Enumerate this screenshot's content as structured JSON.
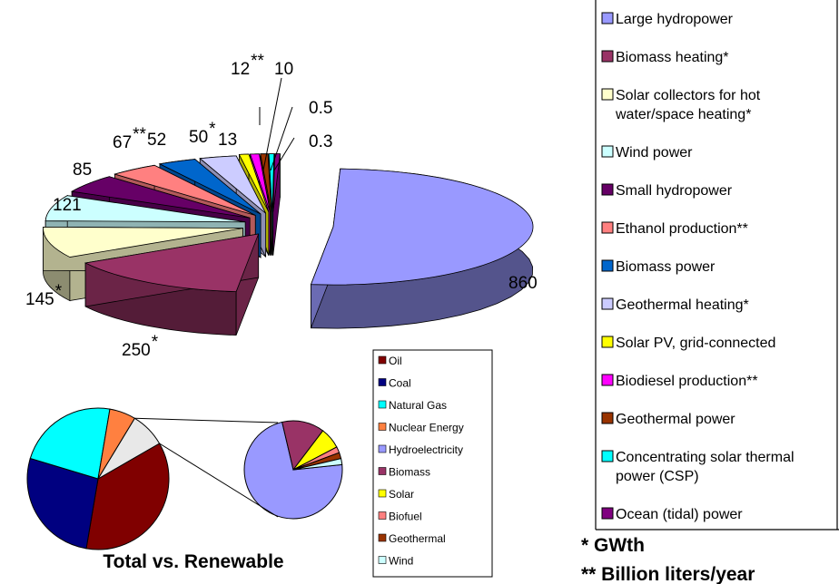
{
  "chart_data": [
    {
      "type": "pie",
      "style": "3d-exploded",
      "values": [
        860,
        250,
        145,
        121,
        85,
        67,
        52,
        50,
        13,
        12,
        10,
        0.5,
        0.3
      ],
      "value_labels": [
        "860",
        "250",
        "145",
        "121",
        "85",
        "67",
        "52",
        "50",
        "13",
        "12",
        "10",
        "0.5",
        "0.3"
      ],
      "label_marks": [
        "",
        "*",
        "*",
        "",
        "",
        "**",
        "",
        "*",
        "",
        "**",
        "",
        "",
        ""
      ],
      "categories": [
        "Large hydropower",
        "Biomass heating*",
        "Solar collectors for hot water/space heating*",
        "Wind power",
        "Small hydropower",
        "Ethanol production**",
        "Biomass power",
        "Geothermal heating*",
        "Solar PV, grid-connected",
        "Biodiesel production**",
        "Geothermal power",
        "Concentrating solar thermal power (CSP)",
        "Ocean (tidal) power"
      ],
      "colors": [
        "#9999ff",
        "#993366",
        "#ffffcc",
        "#ccffff",
        "#660066",
        "#ff8080",
        "#0066cc",
        "#ccccff",
        "#ffff00",
        "#ff00ff",
        "#993300",
        "#00ffff",
        "#800080"
      ],
      "legend": {
        "position": "right",
        "entries": [
          [
            "Large hydropower"
          ],
          [
            "Biomass heating*"
          ],
          [
            "Solar collectors for hot",
            "water/space heating*"
          ],
          [
            "Wind power"
          ],
          [
            "Small hydropower"
          ],
          [
            "Ethanol production**"
          ],
          [
            "Biomass power"
          ],
          [
            "Geothermal heating*"
          ],
          [
            "Solar PV, grid-connected"
          ],
          [
            "Biodiesel production**"
          ],
          [
            "Geothermal power"
          ],
          [
            "Concentrating solar thermal",
            "power (CSP)"
          ],
          [
            "Ocean (tidal) power"
          ]
        ]
      },
      "notes": [
        "* GWth",
        "** Billion liters/year"
      ]
    },
    {
      "type": "pie",
      "style": "pie-of-pie",
      "title": "Total vs. Renewable",
      "categories": [
        "Oil",
        "Coal",
        "Natural Gas",
        "Nuclear Energy",
        "Hydroelectricity",
        "Biomass",
        "Solar",
        "Biofuel",
        "Geothermal",
        "Wind"
      ],
      "colors": [
        "#800000",
        "#000080",
        "#00ffff",
        "#ff8040",
        "#9999ff",
        "#993366",
        "#ffff00",
        "#ff8080",
        "#993300",
        "#ccffff"
      ],
      "main_pie": {
        "segments": [
          "Oil",
          "Coal",
          "Natural Gas",
          "Nuclear Energy",
          "Renewable"
        ],
        "shares_percent": [
          36,
          27,
          23,
          6,
          8
        ],
        "colors": [
          "#800000",
          "#000080",
          "#00ffff",
          "#ff8040",
          "#e8e8e8"
        ]
      },
      "renewable_breakdown": {
        "segments": [
          "Hydroelectricity",
          "Biomass",
          "Solar",
          "Biofuel",
          "Geothermal",
          "Wind"
        ],
        "shares_percent": [
          73,
          14,
          7,
          2,
          2,
          2
        ]
      },
      "legend": {
        "position": "right"
      }
    }
  ]
}
